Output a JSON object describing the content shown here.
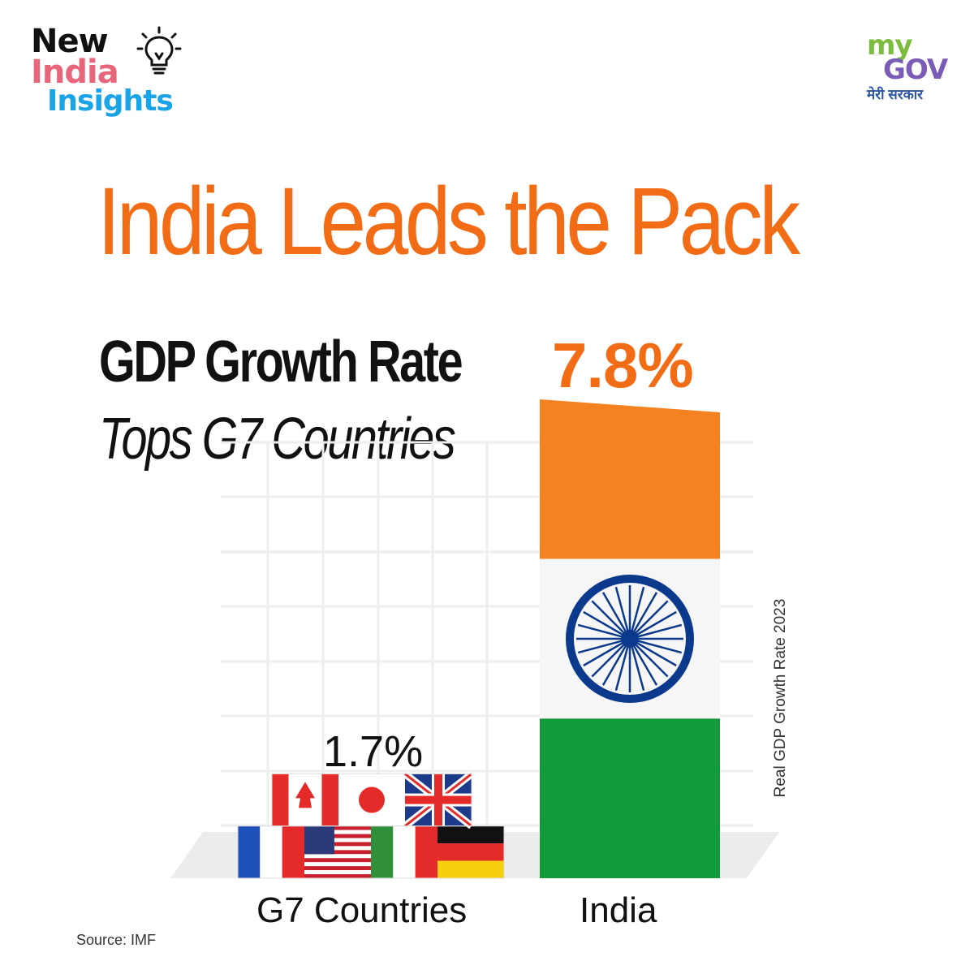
{
  "branding": {
    "left_logo": {
      "line1": "New",
      "line2": "India",
      "line3": "Insights",
      "icon": "lightbulb-icon"
    },
    "right_logo": {
      "my": "my",
      "gov": "GOV",
      "tagline": "मेरी सरकार"
    }
  },
  "headline": "India Leads the Pack",
  "subtitle": "GDP Growth Rate",
  "subtitle2": "Tops G7 Countries",
  "source": "Source: IMF",
  "colors": {
    "accent": "#f26b15",
    "saffron": "#f58220",
    "green": "#139a3b",
    "chakra": "#0b3a8c",
    "text": "#111111"
  },
  "chart_data": {
    "type": "bar",
    "categories": [
      "G7 Countries",
      "India"
    ],
    "values": [
      1.7,
      7.8
    ],
    "value_labels": [
      "1.7%",
      "7.8%"
    ],
    "ylabel": "Real GDP Growth Rate 2023",
    "ylim": [
      0,
      7.8
    ],
    "grid": true,
    "bar_styles": [
      "g7-flags",
      "indian-flag"
    ]
  }
}
